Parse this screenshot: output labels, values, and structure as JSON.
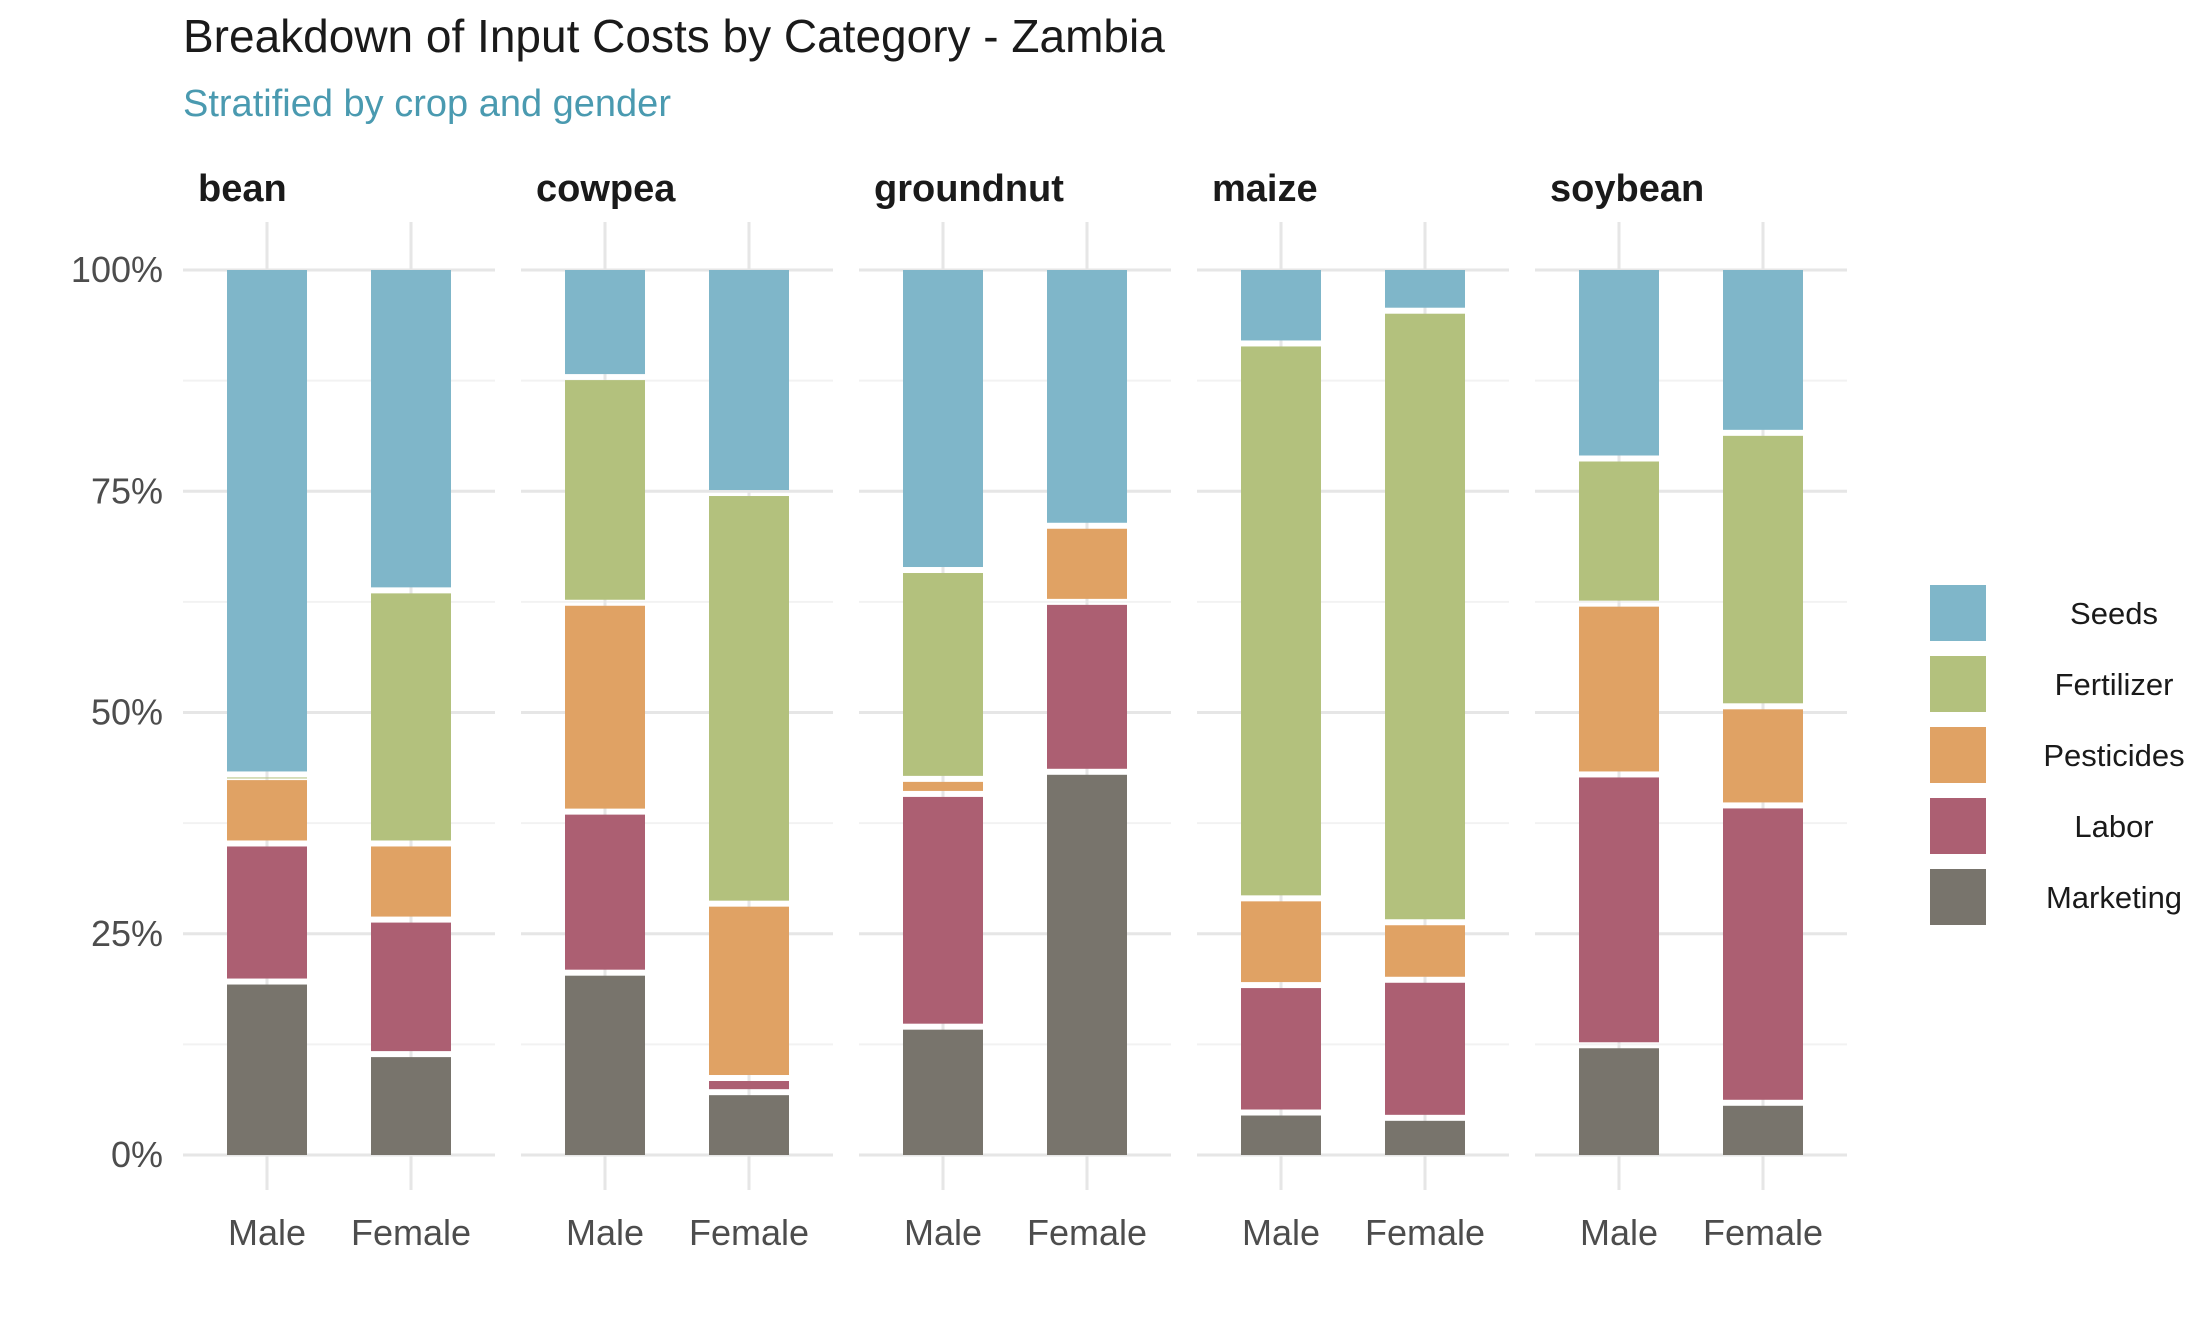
{
  "chart_data": {
    "type": "bar",
    "stacked": true,
    "normalized": true,
    "title": "Breakdown of Input Costs by Category - Zambia",
    "subtitle": "Stratified by crop and gender",
    "xlabel": "",
    "ylabel": "",
    "ylim": [
      0,
      100
    ],
    "y_ticks": [
      "0%",
      "25%",
      "50%",
      "75%",
      "100%"
    ],
    "y_tick_values": [
      0,
      25,
      50,
      75,
      100
    ],
    "legend_position": "right",
    "colors": {
      "Seeds": "#7fb6c9",
      "Fertilizer": "#b3c17d",
      "Pesticides": "#e0a264",
      "Labor": "#ac5f72",
      "Marketing": "#78746c"
    },
    "subtitle_color": "#4a9ab0",
    "stack_order": [
      "Marketing",
      "Labor",
      "Pesticides",
      "Fertilizer",
      "Seeds"
    ],
    "legend_order": [
      "Seeds",
      "Fertilizer",
      "Pesticides",
      "Labor",
      "Marketing"
    ],
    "facets": [
      {
        "label": "bean",
        "bars": [
          {
            "category": "Male",
            "values": {
              "Marketing": 19.6,
              "Labor": 15.6,
              "Pesticides": 7.5,
              "Fertilizer": 0.3,
              "Seeds": 57.0
            }
          },
          {
            "category": "Female",
            "values": {
              "Marketing": 11.4,
              "Labor": 15.2,
              "Pesticides": 8.6,
              "Fertilizer": 28.6,
              "Seeds": 36.2
            }
          }
        ]
      },
      {
        "label": "cowpea",
        "bars": [
          {
            "category": "Male",
            "values": {
              "Marketing": 20.6,
              "Labor": 18.2,
              "Pesticides": 23.6,
              "Fertilizer": 25.5,
              "Seeds": 12.1
            }
          },
          {
            "category": "Female",
            "values": {
              "Marketing": 7.1,
              "Labor": 1.6,
              "Pesticides": 19.7,
              "Fertilizer": 46.4,
              "Seeds": 25.2
            }
          }
        ]
      },
      {
        "label": "groundnut",
        "bars": [
          {
            "category": "Male",
            "values": {
              "Marketing": 14.5,
              "Labor": 26.3,
              "Pesticides": 1.7,
              "Fertilizer": 23.6,
              "Seeds": 33.9
            }
          },
          {
            "category": "Female",
            "values": {
              "Marketing": 43.3,
              "Labor": 19.2,
              "Pesticides": 8.6,
              "Fertilizer": 0.0,
              "Seeds": 28.9
            }
          }
        ]
      },
      {
        "label": "maize",
        "bars": [
          {
            "category": "Male",
            "values": {
              "Marketing": 4.8,
              "Labor": 14.4,
              "Pesticides": 9.8,
              "Fertilizer": 62.7,
              "Seeds": 8.3
            }
          },
          {
            "category": "Female",
            "values": {
              "Marketing": 4.2,
              "Labor": 15.6,
              "Pesticides": 6.5,
              "Fertilizer": 69.1,
              "Seeds": 4.6
            }
          }
        ]
      },
      {
        "label": "soybean",
        "bars": [
          {
            "category": "Male",
            "values": {
              "Marketing": 12.4,
              "Labor": 30.6,
              "Pesticides": 19.3,
              "Fertilizer": 16.4,
              "Seeds": 21.3
            }
          },
          {
            "category": "Female",
            "values": {
              "Marketing": 5.9,
              "Labor": 33.6,
              "Pesticides": 11.2,
              "Fertilizer": 30.9,
              "Seeds": 18.4
            }
          }
        ]
      }
    ]
  }
}
